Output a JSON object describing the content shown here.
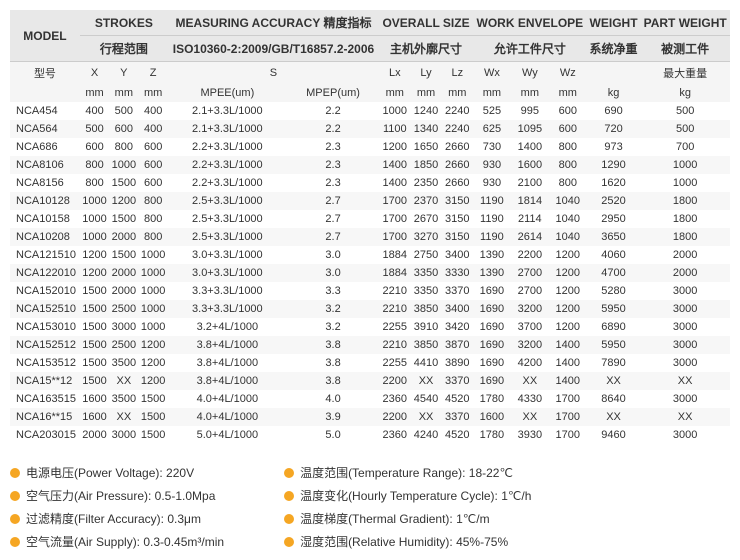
{
  "headers": {
    "group1": [
      "MODEL",
      "STROKES",
      "MEASURING ACCURACY 精度指标",
      "OVERALL SIZE",
      "WORK ENVELOPE",
      "WEIGHT",
      "PART WEIGHT"
    ],
    "group2": [
      "型号",
      "行程范围",
      "ISO10360-2:2009/GB/T16857.2-2006",
      "主机外廓尺寸",
      "允许工件尺寸",
      "系统净重",
      "被测工件"
    ],
    "sub": [
      "",
      "X",
      "Y",
      "Z",
      "S",
      "",
      "Lx",
      "Ly",
      "Lz",
      "Wx",
      "Wy",
      "Wz",
      "",
      "最大重量"
    ],
    "units": [
      "",
      "mm",
      "mm",
      "mm",
      "MPEE(um)",
      "MPEP(um)",
      "mm",
      "mm",
      "mm",
      "mm",
      "mm",
      "mm",
      "kg",
      "kg"
    ]
  },
  "rows": [
    [
      "NCA454",
      "400",
      "500",
      "400",
      "2.1+3.3L/1000",
      "2.2",
      "1000",
      "1240",
      "2240",
      "525",
      "995",
      "600",
      "690",
      "500"
    ],
    [
      "NCA564",
      "500",
      "600",
      "400",
      "2.1+3.3L/1000",
      "2.2",
      "1100",
      "1340",
      "2240",
      "625",
      "1095",
      "600",
      "720",
      "500"
    ],
    [
      "NCA686",
      "600",
      "800",
      "600",
      "2.2+3.3L/1000",
      "2.3",
      "1200",
      "1650",
      "2660",
      "730",
      "1400",
      "800",
      "973",
      "700"
    ],
    [
      "NCA8106",
      "800",
      "1000",
      "600",
      "2.2+3.3L/1000",
      "2.3",
      "1400",
      "1850",
      "2660",
      "930",
      "1600",
      "800",
      "1290",
      "1000"
    ],
    [
      "NCA8156",
      "800",
      "1500",
      "600",
      "2.2+3.3L/1000",
      "2.3",
      "1400",
      "2350",
      "2660",
      "930",
      "2100",
      "800",
      "1620",
      "1000"
    ],
    [
      "NCA10128",
      "1000",
      "1200",
      "800",
      "2.5+3.3L/1000",
      "2.7",
      "1700",
      "2370",
      "3150",
      "1190",
      "1814",
      "1040",
      "2520",
      "1800"
    ],
    [
      "NCA10158",
      "1000",
      "1500",
      "800",
      "2.5+3.3L/1000",
      "2.7",
      "1700",
      "2670",
      "3150",
      "1190",
      "2114",
      "1040",
      "2950",
      "1800"
    ],
    [
      "NCA10208",
      "1000",
      "2000",
      "800",
      "2.5+3.3L/1000",
      "2.7",
      "1700",
      "3270",
      "3150",
      "1190",
      "2614",
      "1040",
      "3650",
      "1800"
    ],
    [
      "NCA121510",
      "1200",
      "1500",
      "1000",
      "3.0+3.3L/1000",
      "3.0",
      "1884",
      "2750",
      "3400",
      "1390",
      "2200",
      "1200",
      "4060",
      "2000"
    ],
    [
      "NCA122010",
      "1200",
      "2000",
      "1000",
      "3.0+3.3L/1000",
      "3.0",
      "1884",
      "3350",
      "3330",
      "1390",
      "2700",
      "1200",
      "4700",
      "2000"
    ],
    [
      "NCA152010",
      "1500",
      "2000",
      "1000",
      "3.3+3.3L/1000",
      "3.3",
      "2210",
      "3350",
      "3370",
      "1690",
      "2700",
      "1200",
      "5280",
      "3000"
    ],
    [
      "NCA152510",
      "1500",
      "2500",
      "1000",
      "3.3+3.3L/1000",
      "3.2",
      "2210",
      "3850",
      "3400",
      "1690",
      "3200",
      "1200",
      "5950",
      "3000"
    ],
    [
      "NCA153010",
      "1500",
      "3000",
      "1000",
      "3.2+4L/1000",
      "3.2",
      "2255",
      "3910",
      "3420",
      "1690",
      "3700",
      "1200",
      "6890",
      "3000"
    ],
    [
      "NCA152512",
      "1500",
      "2500",
      "1200",
      "3.8+4L/1000",
      "3.8",
      "2210",
      "3850",
      "3870",
      "1690",
      "3200",
      "1400",
      "5950",
      "3000"
    ],
    [
      "NCA153512",
      "1500",
      "3500",
      "1200",
      "3.8+4L/1000",
      "3.8",
      "2255",
      "4410",
      "3890",
      "1690",
      "4200",
      "1400",
      "7890",
      "3000"
    ],
    [
      "NCA15**12",
      "1500",
      "XX",
      "1200",
      "3.8+4L/1000",
      "3.8",
      "2200",
      "XX",
      "3370",
      "1690",
      "XX",
      "1400",
      "XX",
      "XX"
    ],
    [
      "NCA163515",
      "1600",
      "3500",
      "1500",
      "4.0+4L/1000",
      "4.0",
      "2360",
      "4540",
      "4520",
      "1780",
      "4330",
      "1700",
      "8640",
      "3000"
    ],
    [
      "NCA16**15",
      "1600",
      "XX",
      "1500",
      "4.0+4L/1000",
      "3.9",
      "2200",
      "XX",
      "3370",
      "1600",
      "XX",
      "1700",
      "XX",
      "XX"
    ],
    [
      "NCA203015",
      "2000",
      "3000",
      "1500",
      "5.0+4L/1000",
      "5.0",
      "2360",
      "4240",
      "4520",
      "1780",
      "3930",
      "1700",
      "9460",
      "3000"
    ]
  ],
  "specs_left": [
    "电源电压(Power Voltage): 220V",
    "空气压力(Air Pressure): 0.5-1.0Mpa",
    "过滤精度(Filter Accuracy): 0.3μm",
    "空气流量(Air Supply): 0.3-0.45m³/min"
  ],
  "specs_right": [
    "温度范围(Temperature Range): 18-22℃",
    "温度变化(Hourly Temperature Cycle): 1℃/h",
    "温度梯度(Thermal Gradient): 1℃/m",
    "湿度范围(Relative Humidity): 45%-75%"
  ],
  "colors": {
    "bullet": "#f5a623",
    "header_bg": "#e8e8e8"
  }
}
